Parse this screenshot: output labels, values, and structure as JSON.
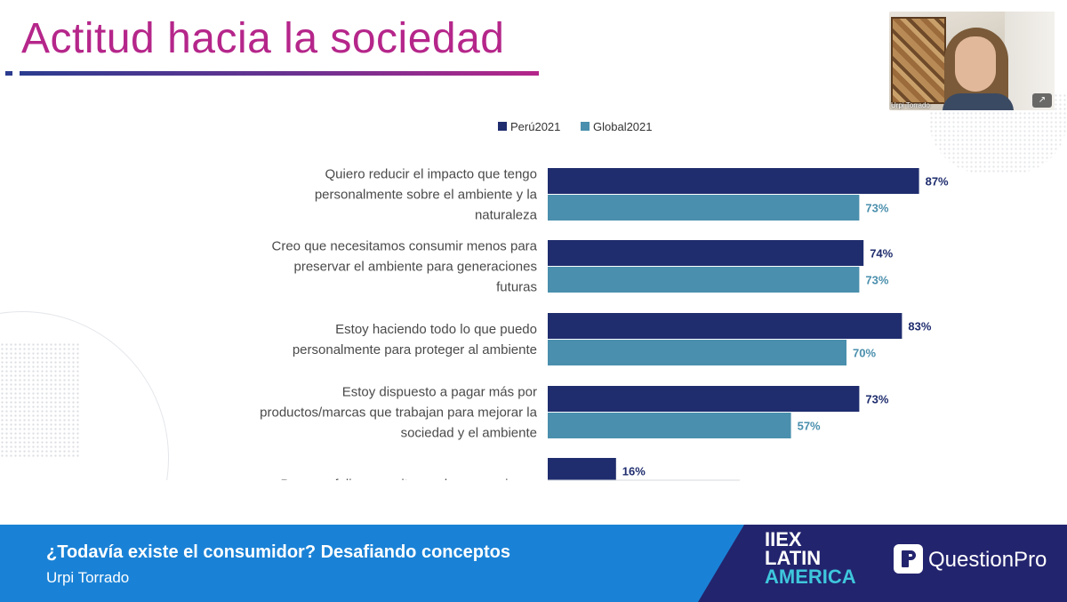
{
  "slide": {
    "title": "Actitud hacia la sociedad"
  },
  "colors": {
    "title": "#b5268a",
    "peru": "#1f2d6e",
    "global": "#4a8fad",
    "peru_label": "#1f2d6e",
    "global_label": "#4a8fad",
    "bottom_bar": "#1a82d6",
    "brand_panel": "#23246e"
  },
  "chart_data": {
    "type": "bar",
    "orientation": "horizontal",
    "categories": [
      [
        "Quiero reducir el impacto que tengo",
        "personalmente sobre el ambiente y la",
        "naturaleza"
      ],
      [
        "Creo que necesitamos consumir menos para",
        "preservar el ambiente para generaciones",
        "futuras"
      ],
      [
        "Estoy haciendo todo lo que puedo",
        "personalmente para proteger al ambiente"
      ],
      [
        "Estoy dispuesto a pagar más por",
        "productos/marcas que trabajan para mejorar la",
        "sociedad y el ambiente"
      ],
      [
        "Para ser feliz, necesito muchas posesiones"
      ]
    ],
    "series": [
      {
        "name": "Perú2021",
        "values": [
          87,
          74,
          83,
          73,
          16
        ],
        "labels": [
          "87%",
          "74%",
          "83%",
          "73%",
          "16%"
        ]
      },
      {
        "name": "Global2021",
        "values": [
          73,
          73,
          70,
          57,
          null
        ],
        "labels": [
          "73%",
          "73%",
          "70%",
          "57%",
          ""
        ]
      }
    ],
    "legend_position": "top",
    "xlim": [
      0,
      100
    ],
    "grid": false
  },
  "video": {
    "name_tag": "Urpi Torrado",
    "expand_icon": "↗"
  },
  "bottom_bar": {
    "talk_title": "¿Todavía existe el consumidor? Desafiando conceptos",
    "speaker": "Urpi Torrado"
  },
  "brand": {
    "iiex_line1": "IIEX",
    "iiex_line2": "LATIN",
    "iiex_line3": "AMERICA",
    "questionpro": "QuestionPro"
  }
}
